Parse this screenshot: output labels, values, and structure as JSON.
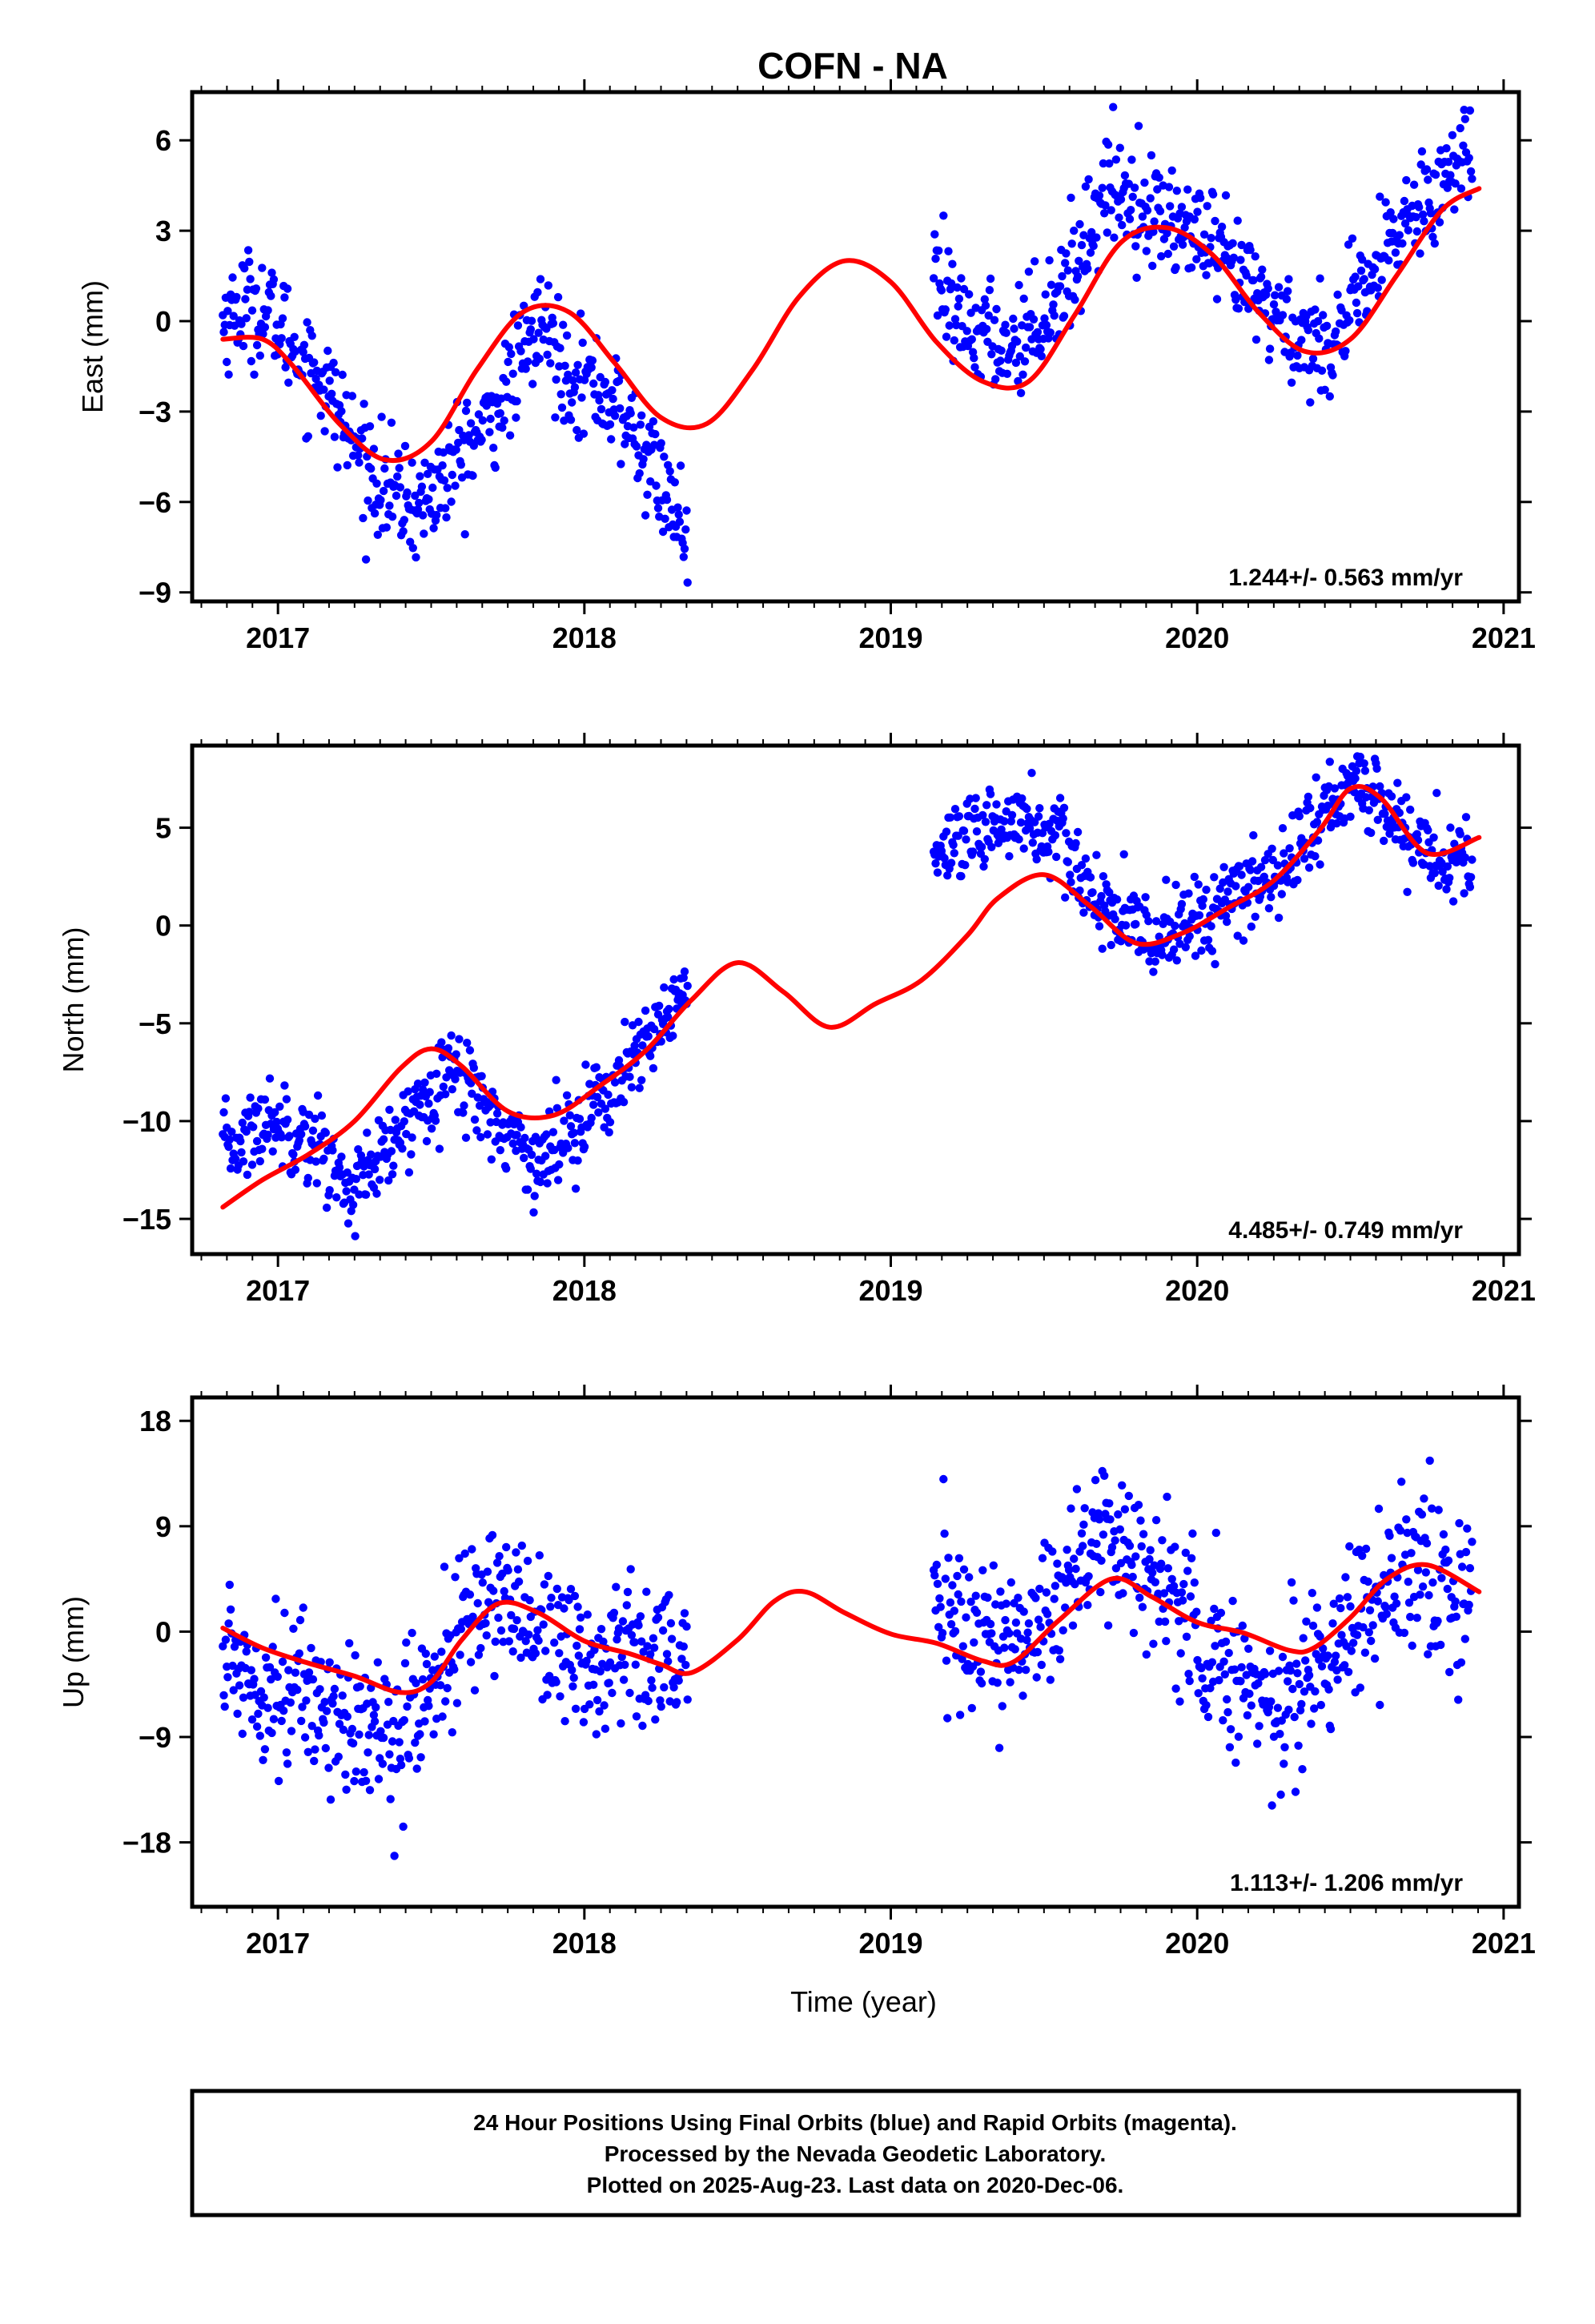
{
  "title": "COFN - NA",
  "colors": {
    "final_orbits": "#0000ff",
    "model": "#ff0000",
    "frame": "#000000"
  },
  "chart_data": [
    {
      "type": "scatter",
      "ylabel": "East (mm)",
      "xlim": [
        2016.72,
        2021.05
      ],
      "ylim": [
        -9.3,
        7.6
      ],
      "yticks": [
        -9,
        -6,
        -3,
        0,
        3,
        6
      ],
      "ytick_labels": [
        "−9",
        "−6",
        "−3",
        "0",
        "3",
        "6"
      ],
      "xticks": [
        2017,
        2018,
        2019,
        2020,
        2021
      ],
      "xtick_labels": [
        "2017",
        "2018",
        "2019",
        "2020",
        "2021"
      ],
      "rate_label": "1.244+/- 0.563 mm/yr",
      "series": [
        {
          "role": "data",
          "segments": [
            {
              "x": [
                2016.82,
                2016.9,
                2016.98,
                2017.06,
                2017.14,
                2017.22,
                2017.3,
                2017.38,
                2017.46,
                2017.54,
                2017.62,
                2017.7,
                2017.78,
                2017.86,
                2017.94,
                2018.02,
                2018.1,
                2018.18,
                2018.26,
                2018.34
              ],
              "y": [
                0.0,
                0.6,
                0.2,
                -1.0,
                -1.8,
                -3.5,
                -5.0,
                -5.8,
                -6.2,
                -5.2,
                -4.2,
                -3.2,
                -1.6,
                0.0,
                -1.6,
                -2.0,
                -2.8,
                -4.0,
                -5.6,
                -7.2
              ]
            },
            {
              "x": [
                2019.14,
                2019.22,
                2019.3,
                2019.38,
                2019.46,
                2019.54,
                2019.62,
                2019.7,
                2019.78,
                2019.86,
                2019.94,
                2020.02,
                2020.1,
                2020.18,
                2020.26,
                2020.34,
                2020.42,
                2020.5,
                2020.58,
                2020.66,
                2020.74,
                2020.82,
                2020.9
              ],
              "y": [
                1.5,
                -0.2,
                -0.4,
                -0.8,
                -0.2,
                0.8,
                2.2,
                4.5,
                4.2,
                3.6,
                3.2,
                2.6,
                1.8,
                1.0,
                0.2,
                -0.6,
                -0.8,
                0.2,
                1.6,
                3.0,
                4.2,
                4.8,
                5.8
              ]
            }
          ]
        },
        {
          "role": "model",
          "x": [
            2016.82,
            2016.95,
            2017.05,
            2017.2,
            2017.35,
            2017.5,
            2017.65,
            2017.8,
            2017.95,
            2018.1,
            2018.25,
            2018.4,
            2018.55,
            2018.7,
            2018.85,
            2019.0,
            2019.15,
            2019.3,
            2019.45,
            2019.6,
            2019.75,
            2019.9,
            2020.05,
            2020.2,
            2020.35,
            2020.5,
            2020.65,
            2020.8,
            2020.92
          ],
          "y": [
            -0.6,
            -0.6,
            -1.5,
            -3.4,
            -4.6,
            -4.0,
            -1.6,
            0.3,
            0.3,
            -1.4,
            -3.2,
            -3.4,
            -1.6,
            0.8,
            2.0,
            1.3,
            -0.7,
            -2.0,
            -2.0,
            0.2,
            2.6,
            3.1,
            2.2,
            0.3,
            -1.0,
            -0.6,
            1.5,
            3.7,
            4.4
          ]
        }
      ]
    },
    {
      "type": "scatter",
      "ylabel": "North (mm)",
      "xlim": [
        2016.72,
        2021.05
      ],
      "ylim": [
        -16.8,
        9.2
      ],
      "yticks": [
        -15,
        -10,
        -5,
        0,
        5
      ],
      "ytick_labels": [
        "−15",
        "−10",
        "−5",
        "0",
        "5"
      ],
      "xticks": [
        2017,
        2018,
        2019,
        2020,
        2021
      ],
      "xtick_labels": [
        "2017",
        "2018",
        "2019",
        "2020",
        "2021"
      ],
      "rate_label": "4.485+/- 0.749 mm/yr",
      "series": [
        {
          "role": "data",
          "segments": [
            {
              "x": [
                2016.82,
                2016.9,
                2016.98,
                2017.06,
                2017.14,
                2017.22,
                2017.3,
                2017.38,
                2017.46,
                2017.54,
                2017.62,
                2017.7,
                2017.78,
                2017.86,
                2017.94,
                2018.02,
                2018.1,
                2018.18,
                2018.26,
                2018.34
              ],
              "y": [
                -11.5,
                -10.8,
                -9.8,
                -10.5,
                -11.2,
                -13.5,
                -12.8,
                -11.2,
                -9.2,
                -7.2,
                -8.0,
                -9.8,
                -11.0,
                -12.2,
                -10.6,
                -9.2,
                -8.2,
                -6.8,
                -4.8,
                -2.6
              ]
            },
            {
              "x": [
                2019.14,
                2019.22,
                2019.3,
                2019.38,
                2019.46,
                2019.54,
                2019.62,
                2019.7,
                2019.78,
                2019.86,
                2019.94,
                2020.02,
                2020.1,
                2020.18,
                2020.26,
                2020.34,
                2020.42,
                2020.5,
                2020.58,
                2020.66,
                2020.74,
                2020.82,
                2020.9
              ],
              "y": [
                3.0,
                3.8,
                4.6,
                5.6,
                5.2,
                4.4,
                2.6,
                0.8,
                -0.2,
                -0.6,
                0.0,
                0.4,
                1.2,
                1.8,
                2.8,
                4.2,
                5.8,
                7.2,
                6.6,
                5.2,
                4.0,
                3.0,
                3.6
              ]
            }
          ]
        },
        {
          "role": "model",
          "x": [
            2016.82,
            2016.95,
            2017.1,
            2017.25,
            2017.4,
            2017.5,
            2017.6,
            2017.75,
            2017.9,
            2018.05,
            2018.2,
            2018.35,
            2018.5,
            2018.65,
            2018.8,
            2018.95,
            2019.1,
            2019.25,
            2019.35,
            2019.5,
            2019.65,
            2019.8,
            2019.95,
            2020.1,
            2020.25,
            2020.4,
            2020.5,
            2020.6,
            2020.75,
            2020.92
          ],
          "y": [
            -14.4,
            -13.0,
            -11.7,
            -10.0,
            -7.3,
            -6.3,
            -7.2,
            -9.5,
            -9.7,
            -8.2,
            -6.4,
            -3.8,
            -1.9,
            -3.4,
            -5.2,
            -4.0,
            -2.8,
            -0.5,
            1.4,
            2.6,
            1.0,
            -0.9,
            -0.4,
            0.9,
            2.3,
            4.9,
            7.0,
            6.5,
            3.7,
            4.5
          ]
        }
      ]
    },
    {
      "type": "scatter",
      "ylabel": "Up (mm)",
      "xlabel": "Time (year)",
      "xlim": [
        2016.72,
        2021.05
      ],
      "ylim": [
        -23.5,
        20.0
      ],
      "yticks": [
        -18,
        -9,
        0,
        9,
        18
      ],
      "ytick_labels": [
        "−18",
        "−9",
        "0",
        "9",
        "18"
      ],
      "xticks": [
        2017,
        2018,
        2019,
        2020,
        2021
      ],
      "xtick_labels": [
        "2017",
        "2018",
        "2019",
        "2020",
        "2021"
      ],
      "rate_label": "1.113+/- 1.206 mm/yr",
      "series": [
        {
          "role": "data",
          "segments": [
            {
              "x": [
                2016.82,
                2016.9,
                2016.98,
                2017.06,
                2017.14,
                2017.22,
                2017.3,
                2017.38,
                2017.46,
                2017.54,
                2017.62,
                2017.7,
                2017.78,
                2017.86,
                2017.94,
                2018.02,
                2018.1,
                2018.18,
                2018.26,
                2018.34
              ],
              "y": [
                -2.0,
                -3.5,
                -4.5,
                -5.0,
                -6.0,
                -7.5,
                -9.0,
                -8.5,
                -6.5,
                -3.0,
                1.0,
                3.5,
                2.0,
                0.5,
                -1.0,
                -3.5,
                -2.0,
                -0.5,
                -1.5,
                -3.0
              ]
            },
            {
              "x": [
                2019.14,
                2019.22,
                2019.3,
                2019.38,
                2019.46,
                2019.54,
                2019.62,
                2019.7,
                2019.78,
                2019.86,
                2019.94,
                2020.02,
                2020.1,
                2020.18,
                2020.26,
                2020.34,
                2020.42,
                2020.5,
                2020.58,
                2020.66,
                2020.74,
                2020.82,
                2020.9
              ],
              "y": [
                2.0,
                1.0,
                0.0,
                -1.5,
                0.5,
                3.5,
                6.0,
                8.0,
                7.0,
                4.5,
                2.0,
                -1.0,
                -3.0,
                -5.0,
                -6.0,
                -5.0,
                -2.0,
                1.0,
                3.0,
                5.0,
                4.0,
                3.0,
                2.0
              ]
            }
          ]
        },
        {
          "role": "model",
          "x": [
            2016.82,
            2016.95,
            2017.1,
            2017.25,
            2017.4,
            2017.5,
            2017.6,
            2017.72,
            2017.85,
            2018.0,
            2018.15,
            2018.25,
            2018.35,
            2018.5,
            2018.62,
            2018.72,
            2018.85,
            2019.0,
            2019.15,
            2019.3,
            2019.4,
            2019.55,
            2019.72,
            2019.85,
            2020.0,
            2020.15,
            2020.3,
            2020.38,
            2020.5,
            2020.62,
            2020.75,
            2020.92
          ],
          "y": [
            0.3,
            -1.4,
            -2.7,
            -3.8,
            -5.2,
            -4.3,
            -0.7,
            2.4,
            1.6,
            -0.8,
            -1.9,
            -2.8,
            -3.5,
            -0.7,
            2.6,
            3.4,
            1.6,
            -0.2,
            -1.0,
            -2.5,
            -2.6,
            1.0,
            4.5,
            3.0,
            0.8,
            -0.1,
            -1.6,
            -1.4,
            1.2,
            4.5,
            5.7,
            3.4
          ]
        }
      ]
    }
  ],
  "footer": {
    "line1": "24 Hour Positions Using Final Orbits (blue) and Rapid Orbits (magenta).",
    "line2": "Processed by the Nevada Geodetic Laboratory.",
    "line3": "Plotted on 2025-Aug-23. Last data on 2020-Dec-06."
  }
}
